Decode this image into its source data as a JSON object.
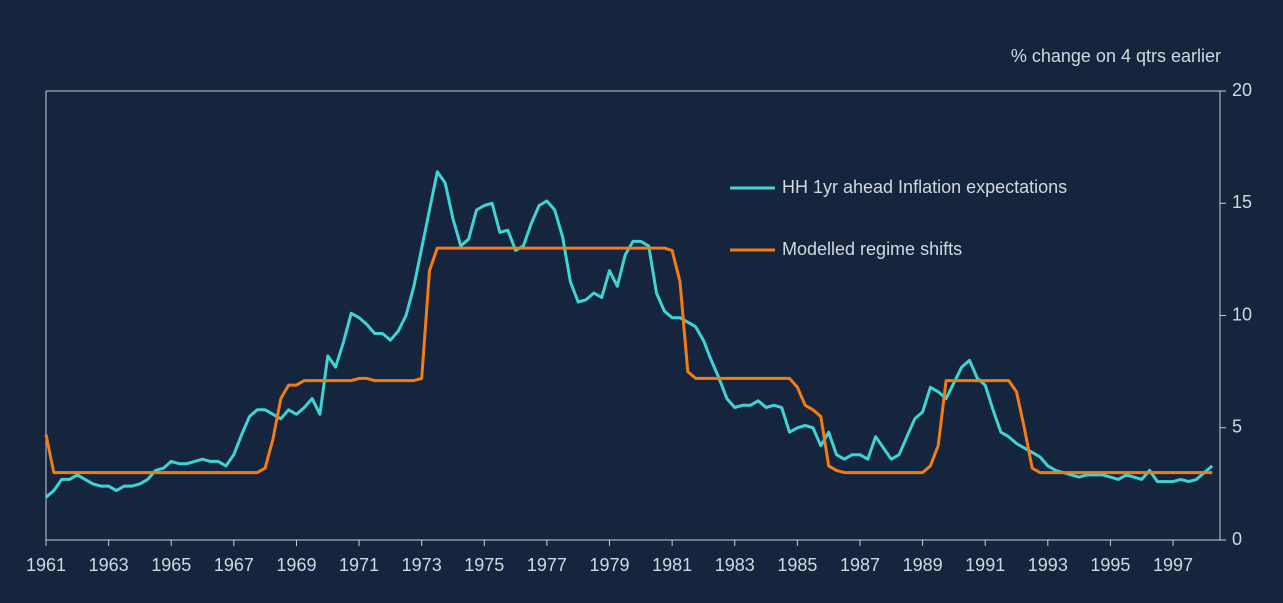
{
  "chart_data": {
    "type": "line",
    "axis_label": "% change on 4 qtrs earlier",
    "x": [
      1961,
      1961.25,
      1961.5,
      1961.75,
      1962,
      1962.25,
      1962.5,
      1962.75,
      1963,
      1963.25,
      1963.5,
      1963.75,
      1964,
      1964.25,
      1964.5,
      1964.75,
      1965,
      1965.25,
      1965.5,
      1965.75,
      1966,
      1966.25,
      1966.5,
      1966.75,
      1967,
      1967.25,
      1967.5,
      1967.75,
      1968,
      1968.25,
      1968.5,
      1968.75,
      1969,
      1969.25,
      1969.5,
      1969.75,
      1970,
      1970.25,
      1970.5,
      1970.75,
      1971,
      1971.25,
      1971.5,
      1971.75,
      1972,
      1972.25,
      1972.5,
      1972.75,
      1973,
      1973.25,
      1973.5,
      1973.75,
      1974,
      1974.25,
      1974.5,
      1974.75,
      1975,
      1975.25,
      1975.5,
      1975.75,
      1976,
      1976.25,
      1976.5,
      1976.75,
      1977,
      1977.25,
      1977.5,
      1977.75,
      1978,
      1978.25,
      1978.5,
      1978.75,
      1979,
      1979.25,
      1979.5,
      1979.75,
      1980,
      1980.25,
      1980.5,
      1980.75,
      1981,
      1981.25,
      1981.5,
      1981.75,
      1982,
      1982.25,
      1982.5,
      1982.75,
      1983,
      1983.25,
      1983.5,
      1983.75,
      1984,
      1984.25,
      1984.5,
      1984.75,
      1985,
      1985.25,
      1985.5,
      1985.75,
      1986,
      1986.25,
      1986.5,
      1986.75,
      1987,
      1987.25,
      1987.5,
      1987.75,
      1988,
      1988.25,
      1988.5,
      1988.75,
      1989,
      1989.25,
      1989.5,
      1989.75,
      1990,
      1990.25,
      1990.5,
      1990.75,
      1991,
      1991.25,
      1991.5,
      1991.75,
      1992,
      1992.25,
      1992.5,
      1992.75,
      1993,
      1993.25,
      1993.5,
      1993.75,
      1994,
      1994.25,
      1994.5,
      1994.75,
      1995,
      1995.25,
      1995.5,
      1995.75,
      1996,
      1996.25,
      1996.5,
      1996.75,
      1997,
      1997.25,
      1997.5,
      1997.75,
      1998,
      1998.25
    ],
    "series": [
      {
        "name": "HH 1yr ahead Inflation expectations",
        "color": "#3fd3d3",
        "values": [
          1.9,
          2.2,
          2.7,
          2.7,
          2.9,
          2.7,
          2.5,
          2.4,
          2.4,
          2.2,
          2.4,
          2.4,
          2.5,
          2.7,
          3.1,
          3.2,
          3.5,
          3.4,
          3.4,
          3.5,
          3.6,
          3.5,
          3.5,
          3.3,
          3.8,
          4.7,
          5.5,
          5.8,
          5.8,
          5.6,
          5.4,
          5.8,
          5.6,
          5.9,
          6.3,
          5.6,
          8.2,
          7.7,
          8.8,
          10.1,
          9.9,
          9.6,
          9.2,
          9.2,
          8.9,
          9.3,
          10.0,
          11.3,
          13.0,
          14.7,
          16.4,
          15.9,
          14.3,
          13.1,
          13.4,
          14.7,
          14.9,
          15.0,
          13.7,
          13.8,
          12.9,
          13.1,
          14.1,
          14.9,
          15.1,
          14.7,
          13.5,
          11.5,
          10.6,
          10.7,
          11.0,
          10.8,
          12.0,
          11.3,
          12.7,
          13.3,
          13.3,
          13.1,
          11.0,
          10.2,
          9.9,
          9.9,
          9.7,
          9.5,
          8.9,
          8.0,
          7.2,
          6.3,
          5.9,
          6.0,
          6.0,
          6.2,
          5.9,
          6.0,
          5.9,
          4.8,
          5.0,
          5.1,
          5.0,
          4.2,
          4.8,
          3.8,
          3.6,
          3.8,
          3.8,
          3.6,
          4.6,
          4.1,
          3.6,
          3.8,
          4.6,
          5.4,
          5.7,
          6.8,
          6.6,
          6.3,
          7.0,
          7.7,
          8.0,
          7.2,
          6.9,
          5.8,
          4.8,
          4.6,
          4.3,
          4.1,
          3.9,
          3.7,
          3.3,
          3.1,
          3.0,
          2.9,
          2.8,
          2.9,
          2.9,
          2.9,
          2.8,
          2.7,
          2.9,
          2.8,
          2.7,
          3.1,
          2.6,
          2.6,
          2.6,
          2.7,
          2.6,
          2.7,
          3.0,
          3.3
        ]
      },
      {
        "name": "Modelled regime shifts",
        "color": "#f47c14",
        "values": [
          4.7,
          3.0,
          3.0,
          3.0,
          3.0,
          3.0,
          3.0,
          3.0,
          3.0,
          3.0,
          3.0,
          3.0,
          3.0,
          3.0,
          3.0,
          3.0,
          3.0,
          3.0,
          3.0,
          3.0,
          3.0,
          3.0,
          3.0,
          3.0,
          3.0,
          3.0,
          3.0,
          3.0,
          3.2,
          4.5,
          6.3,
          6.9,
          6.9,
          7.1,
          7.1,
          7.1,
          7.1,
          7.1,
          7.1,
          7.1,
          7.2,
          7.2,
          7.1,
          7.1,
          7.1,
          7.1,
          7.1,
          7.1,
          7.2,
          12.0,
          13.0,
          13.0,
          13.0,
          13.0,
          13.0,
          13.0,
          13.0,
          13.0,
          13.0,
          13.0,
          13.0,
          13.0,
          13.0,
          13.0,
          13.0,
          13.0,
          13.0,
          13.0,
          13.0,
          13.0,
          13.0,
          13.0,
          13.0,
          13.0,
          13.0,
          13.0,
          13.0,
          13.0,
          13.0,
          13.0,
          12.9,
          11.5,
          7.5,
          7.2,
          7.2,
          7.2,
          7.2,
          7.2,
          7.2,
          7.2,
          7.2,
          7.2,
          7.2,
          7.2,
          7.2,
          7.2,
          6.8,
          6.0,
          5.8,
          5.5,
          3.3,
          3.1,
          3.0,
          3.0,
          3.0,
          3.0,
          3.0,
          3.0,
          3.0,
          3.0,
          3.0,
          3.0,
          3.0,
          3.3,
          4.2,
          7.1,
          7.1,
          7.1,
          7.1,
          7.1,
          7.1,
          7.1,
          7.1,
          7.1,
          6.6,
          5.0,
          3.2,
          3.0,
          3.0,
          3.0,
          3.0,
          3.0,
          3.0,
          3.0,
          3.0,
          3.0,
          3.0,
          3.0,
          3.0,
          3.0,
          3.0,
          3.0,
          3.0,
          3.0,
          3.0,
          3.0,
          3.0,
          3.0,
          3.0,
          3.0
        ]
      }
    ],
    "xlim": [
      1961,
      1998.5
    ],
    "xticks": [
      1961,
      1963,
      1965,
      1967,
      1969,
      1971,
      1973,
      1975,
      1977,
      1979,
      1981,
      1983,
      1985,
      1987,
      1989,
      1991,
      1993,
      1995,
      1997
    ],
    "ylim": [
      0,
      20
    ],
    "yticks": [
      0,
      5,
      10,
      15,
      20
    ],
    "y_axis_side": "right",
    "grid": false,
    "legend": "upper right"
  }
}
